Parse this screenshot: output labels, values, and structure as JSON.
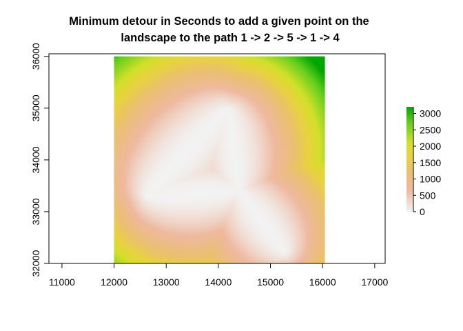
{
  "chart_data": {
    "type": "heatmap",
    "title_lines": [
      "Minimum detour in Seconds to add a given point on the",
      "landscape to the path 1 -> 2 -> 5 -> 1 -> 4"
    ],
    "xlabel": "",
    "ylabel": "",
    "xlim": [
      10750,
      17200
    ],
    "ylim": [
      32000,
      36050
    ],
    "x_ticks": [
      11000,
      12000,
      13000,
      14000,
      15000,
      16000,
      17000
    ],
    "y_ticks": [
      32000,
      33000,
      34000,
      35000,
      36000
    ],
    "raster_extent": {
      "x": [
        12000,
        16050
      ],
      "y": [
        32000,
        36000
      ]
    },
    "colorbar": {
      "min": 0,
      "max": 3200,
      "ticks": [
        0,
        500,
        1000,
        1500,
        2000,
        2500,
        3000
      ],
      "palette": [
        "#f2f2f2",
        "#eeb99f",
        "#eac06e",
        "#e8d33f",
        "#d2e02a",
        "#66cf1e",
        "#00a600"
      ]
    },
    "points": [
      {
        "id": "1",
        "x": 14400,
        "y": 33400
      },
      {
        "id": "2",
        "x": 14200,
        "y": 35000
      },
      {
        "id": "5",
        "x": 12600,
        "y": 33300
      },
      {
        "id": "4",
        "x": 15300,
        "y": 32200
      }
    ],
    "path": [
      "1",
      "2",
      "5",
      "1",
      "4"
    ],
    "grid": false,
    "legend_position": "right"
  }
}
